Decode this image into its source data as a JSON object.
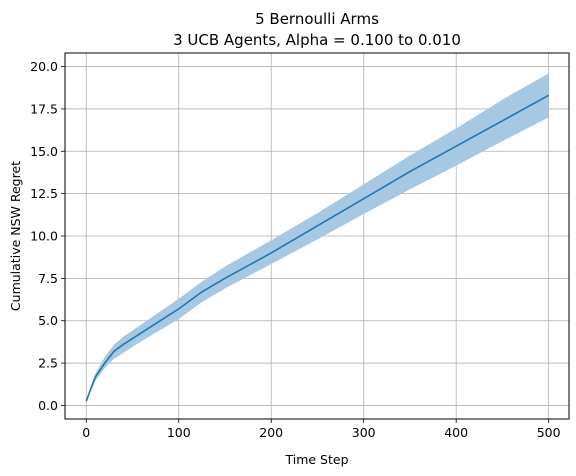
{
  "chart_data": {
    "type": "line",
    "title": "5 Bernoulli Arms",
    "subtitle": "3 UCB Agents, Alpha = 0.100 to 0.010",
    "xlabel": "Time Step",
    "ylabel": "Cumulative NSW Regret",
    "xlim": [
      -23,
      522
    ],
    "ylim": [
      -0.8,
      20.8
    ],
    "grid": true,
    "line_color": "#1f77b4",
    "band_color": "#a6c8e3",
    "x_ticks": [
      0,
      100,
      200,
      300,
      400,
      500
    ],
    "x_tick_labels": [
      "0",
      "100",
      "200",
      "300",
      "400",
      "500"
    ],
    "y_ticks": [
      0,
      2.5,
      5,
      7.5,
      10,
      12.5,
      15,
      17.5,
      20
    ],
    "y_tick_labels": [
      "0.0",
      "2.5",
      "5.0",
      "7.5",
      "10.0",
      "12.5",
      "15.0",
      "17.5",
      "20.0"
    ],
    "series": [
      {
        "x": [
          0,
          5,
          10,
          20,
          30,
          40,
          60,
          80,
          100,
          125,
          150,
          200,
          250,
          300,
          350,
          400,
          450,
          500
        ],
        "mean": [
          0.25,
          1.0,
          1.7,
          2.5,
          3.2,
          3.6,
          4.3,
          5.0,
          5.7,
          6.7,
          7.5,
          9.0,
          10.6,
          12.2,
          13.8,
          15.3,
          16.8,
          18.3
        ],
        "lower": [
          0.15,
          0.85,
          1.45,
          2.2,
          2.75,
          3.1,
          3.8,
          4.45,
          5.1,
          6.1,
          6.9,
          8.35,
          9.8,
          11.3,
          12.75,
          14.15,
          15.6,
          17.0
        ],
        "upper": [
          0.35,
          1.15,
          1.9,
          2.85,
          3.6,
          4.05,
          4.8,
          5.55,
          6.3,
          7.3,
          8.2,
          9.75,
          11.35,
          13.05,
          14.75,
          16.35,
          18.05,
          19.6
        ]
      }
    ]
  }
}
